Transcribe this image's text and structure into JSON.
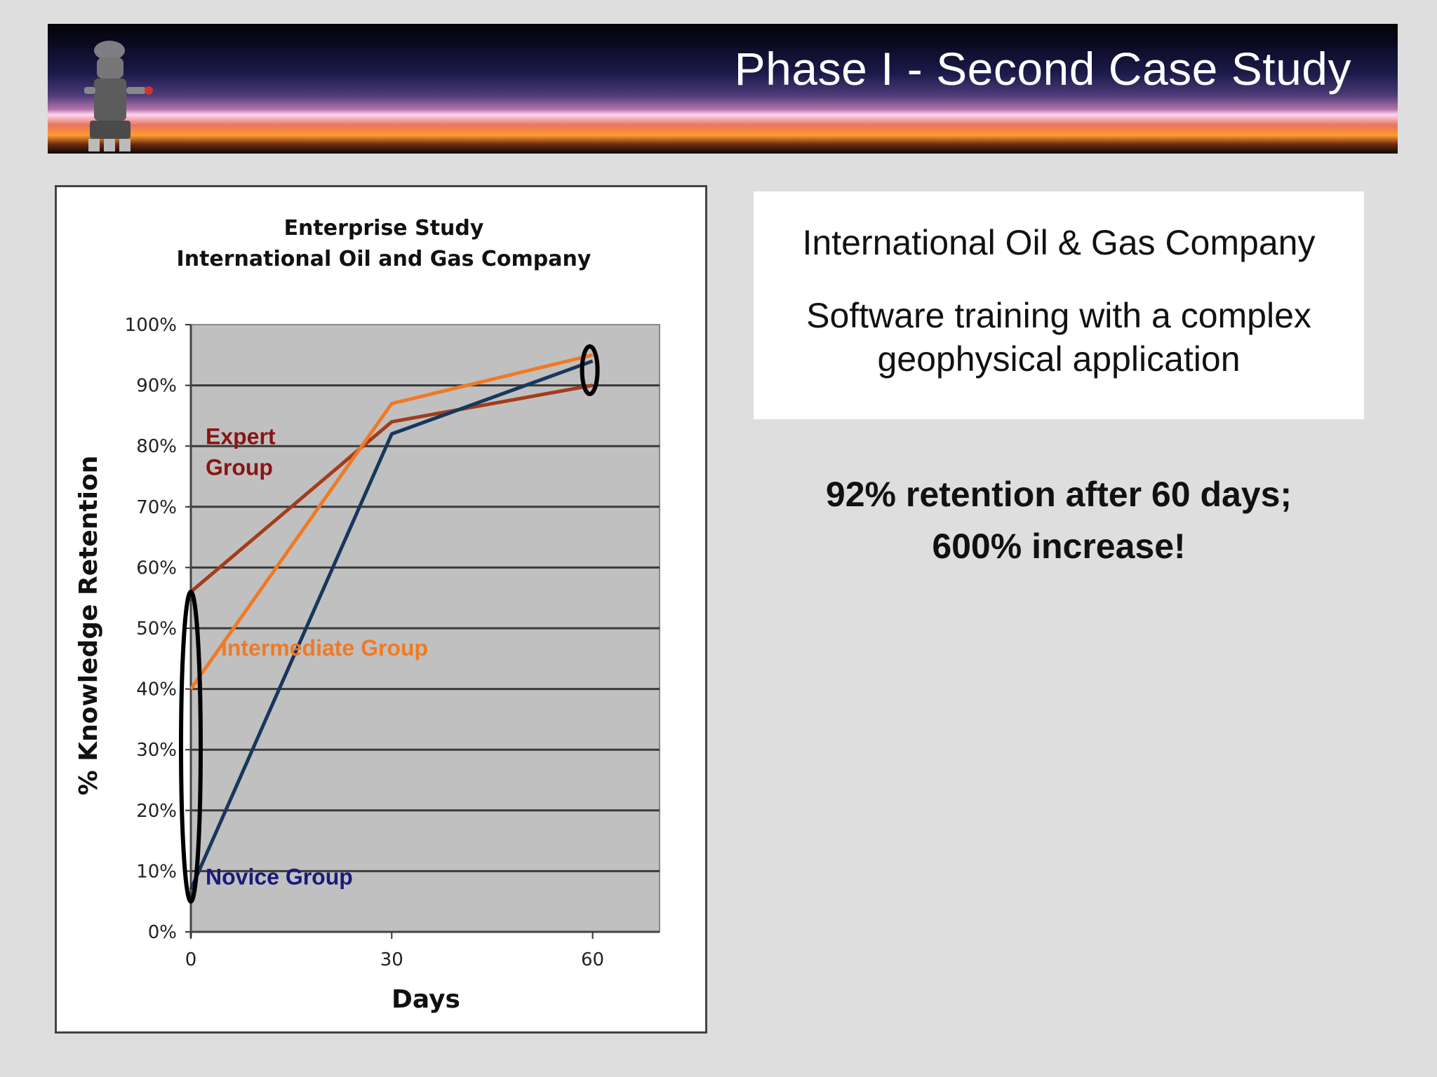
{
  "header": {
    "title": "Phase I - Second Case Study"
  },
  "info": {
    "company": "International Oil & Gas Company",
    "description": "Software training with a complex geophysical application"
  },
  "highlight": {
    "line1": "92% retention after 60 days;",
    "line2": "600% increase!"
  },
  "chart_data": {
    "type": "line",
    "title": "Enterprise Study",
    "subtitle": "International Oil and Gas Company",
    "xlabel": "Days",
    "ylabel": "% Knowledge Retention",
    "x": [
      0,
      30,
      60
    ],
    "xlim": [
      0,
      70
    ],
    "ylim": [
      0,
      100
    ],
    "x_ticks": [
      "0",
      "30",
      "60"
    ],
    "y_ticks": [
      "0%",
      "10%",
      "20%",
      "30%",
      "40%",
      "50%",
      "60%",
      "70%",
      "80%",
      "90%",
      "100%"
    ],
    "grid": true,
    "series": [
      {
        "name": "Expert Group",
        "color": "#a23d1c",
        "label_color": "#8b1414",
        "values": [
          56,
          84,
          90
        ]
      },
      {
        "name": "Intermediate Group",
        "color": "#f07a25",
        "label_color": "#f07a25",
        "values": [
          40,
          87,
          95
        ]
      },
      {
        "name": "Novice Group",
        "color": "#17375e",
        "label_color": "#1a1a7a",
        "values": [
          7,
          82,
          94
        ]
      }
    ]
  }
}
